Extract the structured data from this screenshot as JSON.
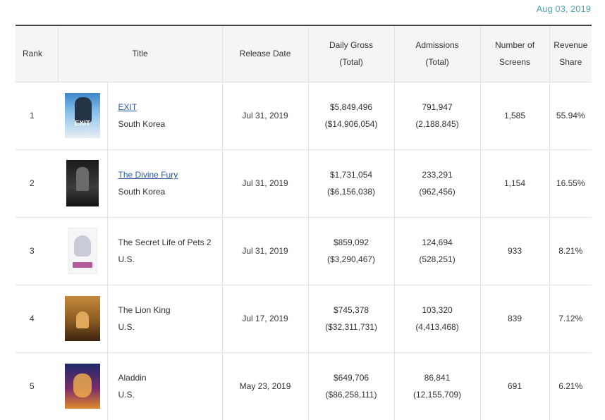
{
  "date": "Aug 03, 2019",
  "headers": {
    "rank": "Rank",
    "title": "Title",
    "release_date": "Release Date",
    "daily_gross_1": "Daily Gross",
    "daily_gross_2": "(Total)",
    "admissions_1": "Admissions",
    "admissions_2": "(Total)",
    "screens_1": "Number of",
    "screens_2": "Screens",
    "share_1": "Revenue",
    "share_2": "Share"
  },
  "rows": [
    {
      "rank": "1",
      "title": "EXIT",
      "country": "South Korea",
      "release": "Jul 31, 2019",
      "gross": "$5,849,496",
      "gross_total": "($14,906,054)",
      "admissions": "791,947",
      "admissions_total": "(2,188,845)",
      "screens": "1,585",
      "share": "55.94%",
      "poster_text": "EXIT"
    },
    {
      "rank": "2",
      "title": "The Divine Fury",
      "country": "South Korea",
      "release": "Jul 31, 2019",
      "gross": "$1,731,054",
      "gross_total": "($6,156,038)",
      "admissions": "233,291",
      "admissions_total": "(962,456)",
      "screens": "1,154",
      "share": "16.55%"
    },
    {
      "rank": "3",
      "title": "The Secret Life of Pets 2",
      "country": "U.S.",
      "release": "Jul 31, 2019",
      "gross": "$859,092",
      "gross_total": "($3,290,467)",
      "admissions": "124,694",
      "admissions_total": "(528,251)",
      "screens": "933",
      "share": "8.21%"
    },
    {
      "rank": "4",
      "title": "The Lion King",
      "country": "U.S.",
      "release": "Jul 17, 2019",
      "gross": "$745,378",
      "gross_total": "($32,311,731)",
      "admissions": "103,320",
      "admissions_total": "(4,413,468)",
      "screens": "839",
      "share": "7.12%"
    },
    {
      "rank": "5",
      "title": "Aladdin",
      "country": "U.S.",
      "release": "May 23, 2019",
      "gross": "$649,706",
      "gross_total": "($86,258,111)",
      "admissions": "86,841",
      "admissions_total": "(12,155,709)",
      "screens": "691",
      "share": "6.21%"
    }
  ]
}
